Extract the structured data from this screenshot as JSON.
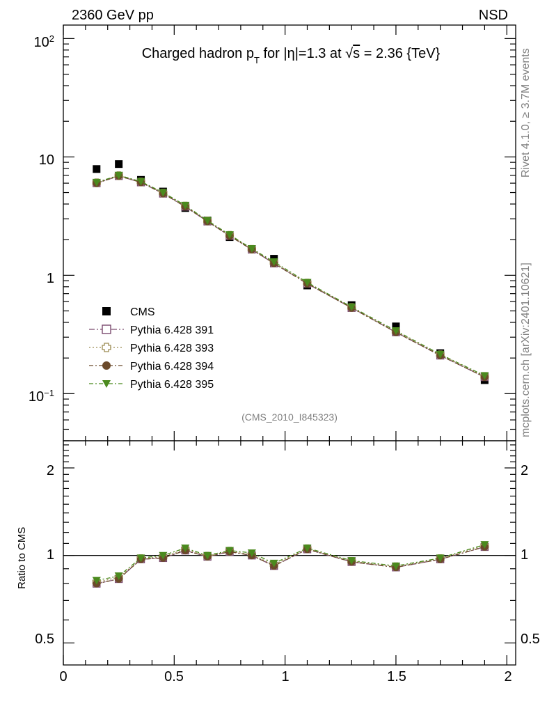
{
  "header": {
    "left_label": "2360 GeV pp",
    "right_label": "NSD"
  },
  "side_labels": {
    "rivet": "Rivet 4.1.0, ≥ 3.7M events",
    "mcplots": "mcplots.cern.ch [arXiv:2401.10621]"
  },
  "ratio_ylabel": "Ratio to CMS",
  "analysis_id": "(CMS_2010_I845323)",
  "tick_labels": {
    "main_y": [
      {
        "base": "10",
        "exp": "2"
      },
      {
        "base": "10",
        "exp": ""
      },
      {
        "base": "1",
        "exp": ""
      },
      {
        "base": "10",
        "exp": "−1"
      }
    ],
    "ratio_y": [
      "2",
      "1",
      "0.5"
    ],
    "x": [
      "0",
      "0.5",
      "1",
      "1.5",
      "2"
    ]
  },
  "chart_data": [
    {
      "type": "scatter",
      "panel": "main",
      "title": "Charged hadron pT for |η|=1.3 at √s = 2.36 {TeV}",
      "title_parts": {
        "prefix": "Charged hadron p",
        "pt_sub": "T",
        "eta_part": " for |η|=1.3 at ",
        "sqrt": "√",
        "s_over": "s",
        "suffix": " = 2.36 {TeV}"
      },
      "xlabel": "",
      "ylabel": "",
      "xlim": [
        0,
        2.04
      ],
      "ylim": [
        0.04,
        130
      ],
      "yscale": "log",
      "x": [
        0.15,
        0.25,
        0.35,
        0.45,
        0.55,
        0.65,
        0.75,
        0.85,
        0.95,
        1.1,
        1.3,
        1.5,
        1.7,
        1.9
      ],
      "series": [
        {
          "name": "CMS",
          "style": "data",
          "color": "#000000",
          "values": [
            7.9,
            8.7,
            6.4,
            5.1,
            3.7,
            2.9,
            2.1,
            1.65,
            1.38,
            0.82,
            0.56,
            0.37,
            0.22,
            0.13
          ]
        },
        {
          "name": "Pythia 6.428 391",
          "style": "open-square",
          "color": "#7b4a6e",
          "values": [
            6.0,
            6.9,
            6.1,
            4.9,
            3.8,
            2.85,
            2.15,
            1.65,
            1.26,
            0.85,
            0.53,
            0.33,
            0.21,
            0.138
          ]
        },
        {
          "name": "Pythia 6.428 393",
          "style": "open-cross",
          "color": "#9b8a50",
          "values": [
            6.05,
            6.95,
            6.15,
            4.95,
            3.85,
            2.88,
            2.18,
            1.66,
            1.28,
            0.86,
            0.535,
            0.335,
            0.213,
            0.14
          ]
        },
        {
          "name": "Pythia 6.428 394",
          "style": "filled-circle",
          "color": "#6b4a2a",
          "values": [
            6.0,
            6.9,
            6.1,
            4.9,
            3.8,
            2.85,
            2.15,
            1.65,
            1.26,
            0.85,
            0.53,
            0.33,
            0.21,
            0.138
          ]
        },
        {
          "name": "Pythia 6.428 395",
          "style": "filled-triangle-down",
          "color": "#4b8a1e",
          "values": [
            6.1,
            7.0,
            6.2,
            5.0,
            3.9,
            2.9,
            2.2,
            1.68,
            1.3,
            0.87,
            0.54,
            0.34,
            0.215,
            0.142
          ]
        }
      ]
    },
    {
      "type": "line",
      "panel": "ratio",
      "ylabel": "Ratio to CMS",
      "xlim": [
        0,
        2.04
      ],
      "ylim": [
        0.42,
        2.48
      ],
      "yscale": "log",
      "reference_line": 1,
      "x": [
        0.15,
        0.25,
        0.35,
        0.45,
        0.55,
        0.65,
        0.75,
        0.85,
        0.95,
        1.1,
        1.3,
        1.5,
        1.7,
        1.9
      ],
      "series": [
        {
          "name": "Pythia 6.428 391",
          "style": "open-square",
          "color": "#7b4a6e",
          "values": [
            0.8,
            0.83,
            0.97,
            0.98,
            1.04,
            0.99,
            1.03,
            1.0,
            0.92,
            1.05,
            0.95,
            0.91,
            0.97,
            1.07
          ]
        },
        {
          "name": "Pythia 6.428 393",
          "style": "open-cross",
          "color": "#9b8a50",
          "values": [
            0.81,
            0.84,
            0.975,
            0.99,
            1.05,
            0.995,
            1.035,
            1.005,
            0.93,
            1.055,
            0.955,
            0.915,
            0.975,
            1.08
          ]
        },
        {
          "name": "Pythia 6.428 394",
          "style": "filled-circle",
          "color": "#6b4a2a",
          "values": [
            0.8,
            0.83,
            0.97,
            0.98,
            1.04,
            0.99,
            1.03,
            1.0,
            0.92,
            1.05,
            0.95,
            0.91,
            0.97,
            1.07
          ]
        },
        {
          "name": "Pythia 6.428 395",
          "style": "filled-triangle-down",
          "color": "#4b8a1e",
          "values": [
            0.82,
            0.85,
            0.98,
            1.0,
            1.06,
            1.0,
            1.04,
            1.02,
            0.94,
            1.06,
            0.96,
            0.92,
            0.98,
            1.09
          ]
        }
      ]
    }
  ]
}
